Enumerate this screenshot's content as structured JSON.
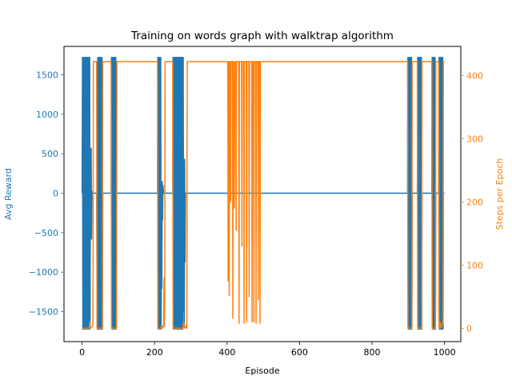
{
  "chart_data": {
    "type": "line",
    "title": "Training on words graph with walktrap algorithm",
    "xlabel": "Episode",
    "ylabel_left": "Avg Reward",
    "ylabel_right": "Steps per Epoch",
    "xlim": [
      -50,
      1045
    ],
    "ylim_left": [
      -1880,
      1860
    ],
    "ylim_right": [
      -21,
      446
    ],
    "x_ticks": [
      0,
      200,
      400,
      600,
      800,
      1000
    ],
    "y_left_ticks": [
      -1500,
      -1000,
      -500,
      0,
      500,
      1000,
      1500
    ],
    "y_right_ticks": [
      0,
      100,
      200,
      300,
      400
    ],
    "grid": false,
    "colors": {
      "left_series": "#1f77b4",
      "right_series": "#ff7f0e"
    },
    "series": [
      {
        "axis": "left",
        "points": [
          [
            0,
            0
          ],
          [
            1,
            1720
          ],
          [
            2,
            -1720
          ],
          [
            3,
            1720
          ],
          [
            4,
            -1720
          ],
          [
            5,
            1720
          ],
          [
            6,
            -1720
          ],
          [
            7,
            1720
          ],
          [
            8,
            -1720
          ],
          [
            9,
            1720
          ],
          [
            10,
            -1720
          ],
          [
            11,
            1720
          ],
          [
            12,
            -1720
          ],
          [
            13,
            1720
          ],
          [
            14,
            -1720
          ],
          [
            15,
            1720
          ],
          [
            16,
            -1720
          ],
          [
            17,
            1720
          ],
          [
            18,
            -1720
          ],
          [
            19,
            1720
          ],
          [
            20,
            -1720
          ],
          [
            21,
            1720
          ],
          [
            22,
            -1720
          ],
          [
            23,
            560
          ],
          [
            24,
            -560
          ],
          [
            25,
            570
          ],
          [
            26,
            -580
          ],
          [
            27,
            20
          ],
          [
            30,
            0
          ],
          [
            40,
            0
          ],
          [
            42,
            -1720
          ],
          [
            43,
            1720
          ],
          [
            44,
            -1720
          ],
          [
            45,
            1720
          ],
          [
            46,
            -1720
          ],
          [
            47,
            1720
          ],
          [
            48,
            -1720
          ],
          [
            49,
            1720
          ],
          [
            50,
            -1720
          ],
          [
            51,
            1720
          ],
          [
            52,
            -1720
          ],
          [
            53,
            1720
          ],
          [
            54,
            -1720
          ],
          [
            55,
            1720
          ],
          [
            56,
            -1720
          ],
          [
            57,
            0
          ],
          [
            80,
            0
          ],
          [
            81,
            1720
          ],
          [
            82,
            -1720
          ],
          [
            83,
            1720
          ],
          [
            84,
            -1720
          ],
          [
            85,
            1720
          ],
          [
            86,
            -1720
          ],
          [
            87,
            1720
          ],
          [
            88,
            -1720
          ],
          [
            89,
            1720
          ],
          [
            90,
            -1720
          ],
          [
            91,
            1720
          ],
          [
            92,
            -1720
          ],
          [
            93,
            1720
          ],
          [
            94,
            -1720
          ],
          [
            95,
            0
          ],
          [
            208,
            0
          ],
          [
            209,
            1720
          ],
          [
            210,
            -1720
          ],
          [
            211,
            1720
          ],
          [
            212,
            -1720
          ],
          [
            213,
            1720
          ],
          [
            214,
            -1720
          ],
          [
            215,
            1720
          ],
          [
            216,
            -1720
          ],
          [
            217,
            1720
          ],
          [
            218,
            -1720
          ],
          [
            219,
            120
          ],
          [
            220,
            -1210
          ],
          [
            221,
            150
          ],
          [
            222,
            -340
          ],
          [
            223,
            100
          ],
          [
            225,
            0
          ],
          [
            250,
            0
          ],
          [
            251,
            1720
          ],
          [
            252,
            -1720
          ],
          [
            253,
            1720
          ],
          [
            254,
            -1720
          ],
          [
            255,
            1720
          ],
          [
            256,
            -1720
          ],
          [
            257,
            1720
          ],
          [
            258,
            -1720
          ],
          [
            259,
            1720
          ],
          [
            260,
            -1720
          ],
          [
            261,
            1720
          ],
          [
            262,
            -1720
          ],
          [
            263,
            1720
          ],
          [
            264,
            -1720
          ],
          [
            265,
            1720
          ],
          [
            266,
            -1720
          ],
          [
            267,
            1720
          ],
          [
            268,
            -1720
          ],
          [
            269,
            1720
          ],
          [
            270,
            -1720
          ],
          [
            271,
            1720
          ],
          [
            272,
            -1720
          ],
          [
            273,
            1720
          ],
          [
            274,
            -1720
          ],
          [
            275,
            1720
          ],
          [
            276,
            -1720
          ],
          [
            277,
            1720
          ],
          [
            278,
            -1720
          ],
          [
            279,
            1720
          ],
          [
            280,
            -1500
          ],
          [
            281,
            430
          ],
          [
            282,
            -1700
          ],
          [
            283,
            430
          ],
          [
            284,
            -870
          ],
          [
            285,
            0
          ],
          [
            400,
            0
          ],
          [
            600,
            0
          ],
          [
            800,
            0
          ],
          [
            898,
            0
          ],
          [
            899,
            1720
          ],
          [
            900,
            -1720
          ],
          [
            901,
            1720
          ],
          [
            902,
            -1720
          ],
          [
            903,
            1720
          ],
          [
            904,
            -1720
          ],
          [
            905,
            1720
          ],
          [
            906,
            -1720
          ],
          [
            907,
            1720
          ],
          [
            908,
            -1720
          ],
          [
            909,
            1720
          ],
          [
            910,
            -1720
          ],
          [
            911,
            0
          ],
          [
            925,
            0
          ],
          [
            926,
            1720
          ],
          [
            927,
            -1720
          ],
          [
            928,
            1720
          ],
          [
            929,
            -1720
          ],
          [
            930,
            1720
          ],
          [
            931,
            -1720
          ],
          [
            932,
            1720
          ],
          [
            933,
            -1720
          ],
          [
            934,
            1720
          ],
          [
            935,
            -1720
          ],
          [
            936,
            1720
          ],
          [
            937,
            -1720
          ],
          [
            938,
            0
          ],
          [
            965,
            0
          ],
          [
            966,
            1720
          ],
          [
            967,
            -1720
          ],
          [
            968,
            1720
          ],
          [
            969,
            -1720
          ],
          [
            970,
            1720
          ],
          [
            971,
            -1720
          ],
          [
            972,
            1720
          ],
          [
            973,
            -1720
          ],
          [
            974,
            1720
          ],
          [
            975,
            -1720
          ],
          [
            976,
            0
          ],
          [
            984,
            0
          ],
          [
            985,
            1720
          ],
          [
            986,
            -1720
          ],
          [
            987,
            1720
          ],
          [
            988,
            -1720
          ],
          [
            989,
            1720
          ],
          [
            990,
            -1720
          ],
          [
            991,
            1720
          ],
          [
            992,
            -1720
          ],
          [
            993,
            1720
          ],
          [
            994,
            -1720
          ],
          [
            995,
            1720
          ],
          [
            996,
            -1720
          ],
          [
            997,
            0
          ],
          [
            1000,
            0
          ]
        ]
      },
      {
        "axis": "right",
        "points": [
          [
            0,
            0
          ],
          [
            20,
            0
          ],
          [
            21,
            10
          ],
          [
            22,
            0
          ],
          [
            26,
            2
          ],
          [
            30,
            5
          ],
          [
            31,
            422
          ],
          [
            40,
            422
          ],
          [
            41,
            0
          ],
          [
            56,
            0
          ],
          [
            57,
            422
          ],
          [
            80,
            422
          ],
          [
            81,
            0
          ],
          [
            95,
            0
          ],
          [
            96,
            422
          ],
          [
            208,
            422
          ],
          [
            209,
            0
          ],
          [
            218,
            0
          ],
          [
            219,
            5
          ],
          [
            222,
            0
          ],
          [
            225,
            5
          ],
          [
            226,
            80
          ],
          [
            227,
            3
          ],
          [
            228,
            40
          ],
          [
            229,
            422
          ],
          [
            250,
            422
          ],
          [
            251,
            0
          ],
          [
            278,
            0
          ],
          [
            280,
            10
          ],
          [
            282,
            3
          ],
          [
            284,
            0
          ],
          [
            288,
            5
          ],
          [
            289,
            0
          ],
          [
            290,
            422
          ],
          [
            402,
            422
          ],
          [
            403,
            75
          ],
          [
            404,
            422
          ],
          [
            406,
            52
          ],
          [
            407,
            422
          ],
          [
            409,
            422
          ],
          [
            410,
            200
          ],
          [
            411,
            422
          ],
          [
            415,
            422
          ],
          [
            416,
            16
          ],
          [
            417,
            422
          ],
          [
            420,
            190
          ],
          [
            421,
            422
          ],
          [
            424,
            422
          ],
          [
            425,
            155
          ],
          [
            426,
            422
          ],
          [
            432,
            422
          ],
          [
            433,
            8
          ],
          [
            434,
            422
          ],
          [
            440,
            422
          ],
          [
            441,
            130
          ],
          [
            442,
            422
          ],
          [
            446,
            422
          ],
          [
            447,
            8
          ],
          [
            448,
            422
          ],
          [
            453,
            422
          ],
          [
            454,
            10
          ],
          [
            455,
            422
          ],
          [
            460,
            422
          ],
          [
            461,
            50
          ],
          [
            462,
            422
          ],
          [
            468,
            422
          ],
          [
            469,
            10
          ],
          [
            470,
            422
          ],
          [
            473,
            422
          ],
          [
            474,
            10
          ],
          [
            475,
            422
          ],
          [
            479,
            422
          ],
          [
            480,
            8
          ],
          [
            481,
            422
          ],
          [
            485,
            422
          ],
          [
            486,
            45
          ],
          [
            487,
            422
          ],
          [
            490,
            422
          ],
          [
            491,
            8
          ],
          [
            492,
            422
          ],
          [
            898,
            422
          ],
          [
            899,
            0
          ],
          [
            910,
            0
          ],
          [
            911,
            422
          ],
          [
            925,
            422
          ],
          [
            926,
            0
          ],
          [
            937,
            0
          ],
          [
            938,
            422
          ],
          [
            965,
            422
          ],
          [
            966,
            0
          ],
          [
            975,
            0
          ],
          [
            976,
            422
          ],
          [
            984,
            422
          ],
          [
            985,
            0
          ],
          [
            988,
            10
          ],
          [
            990,
            0
          ],
          [
            996,
            10
          ],
          [
            997,
            422
          ],
          [
            1000,
            422
          ]
        ]
      }
    ]
  }
}
